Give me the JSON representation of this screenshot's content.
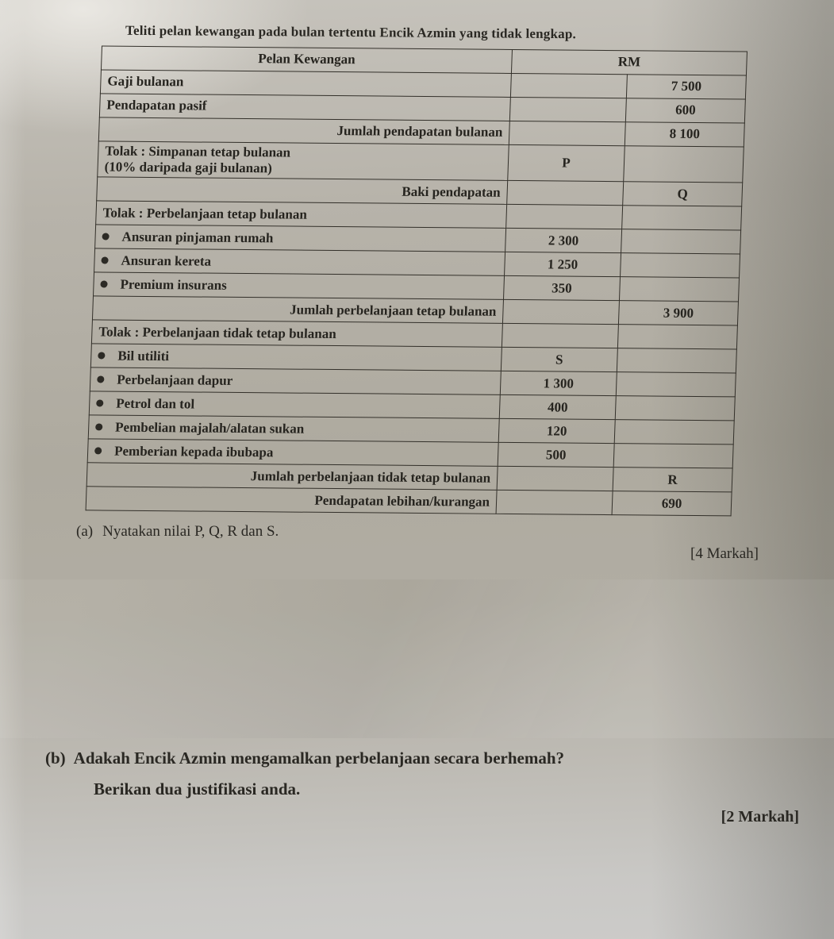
{
  "title": "Teliti pelan kewangan pada bulan tertentu Encik Azmin yang tidak lengkap.",
  "colors": {
    "paper_base": "#b1ada3",
    "ink": "#2a2823",
    "table_border": "#33302a"
  },
  "table": {
    "header": {
      "col1": "Pelan Kewangan",
      "col2": "RM"
    },
    "rows": [
      {
        "label": "Gaji bulanan",
        "align": "left",
        "mid": "",
        "right": "7 500"
      },
      {
        "label": "Pendapatan pasif",
        "align": "left",
        "mid": "",
        "right": "600"
      },
      {
        "label": "Jumlah pendapatan bulanan",
        "align": "right",
        "mid": "",
        "right": "8 100"
      },
      {
        "label": "Tolak : Simpanan tetap bulanan",
        "label2": "(10% daripada gaji bulanan)",
        "align": "left",
        "mid": "P",
        "right": ""
      },
      {
        "label": "Baki pendapatan",
        "align": "right",
        "mid": "",
        "right": "Q"
      },
      {
        "label": "Tolak : Perbelanjaan tetap bulanan",
        "align": "left",
        "mid": "",
        "right": ""
      },
      {
        "label": "Ansuran pinjaman rumah",
        "align": "bullet",
        "mid": "2 300",
        "right": ""
      },
      {
        "label": "Ansuran kereta",
        "align": "bullet",
        "mid": "1 250",
        "right": ""
      },
      {
        "label": "Premium insurans",
        "align": "bullet",
        "mid": "350",
        "right": ""
      },
      {
        "label": "Jumlah perbelanjaan tetap bulanan",
        "align": "right",
        "mid": "",
        "right": "3 900"
      },
      {
        "label": "Tolak : Perbelanjaan tidak tetap bulanan",
        "align": "left",
        "mid": "",
        "right": ""
      },
      {
        "label": "Bil utiliti",
        "align": "bullet",
        "mid": "S",
        "right": ""
      },
      {
        "label": "Perbelanjaan dapur",
        "align": "bullet",
        "mid": "1 300",
        "right": ""
      },
      {
        "label": "Petrol dan tol",
        "align": "bullet",
        "mid": "400",
        "right": ""
      },
      {
        "label": "Pembelian majalah/alatan sukan",
        "align": "bullet",
        "mid": "120",
        "right": ""
      },
      {
        "label": "Pemberian kepada ibubapa",
        "align": "bullet",
        "mid": "500",
        "right": ""
      },
      {
        "label": "Jumlah perbelanjaan tidak tetap bulanan",
        "align": "right",
        "mid": "",
        "right": "R"
      },
      {
        "label": "Pendapatan lebihan/kurangan",
        "align": "right",
        "mid": "",
        "right": "690"
      }
    ]
  },
  "questions": {
    "a": {
      "prefix": "(a)",
      "text": "Nyatakan nilai P, Q, R dan S.",
      "marks": "[4 Markah]"
    },
    "b": {
      "prefix": "(b)",
      "line1": "Adakah Encik Azmin mengamalkan perbelanjaan secara berhemah?",
      "line2": "Berikan dua justifikasi anda.",
      "marks": "[2 Markah]"
    }
  }
}
